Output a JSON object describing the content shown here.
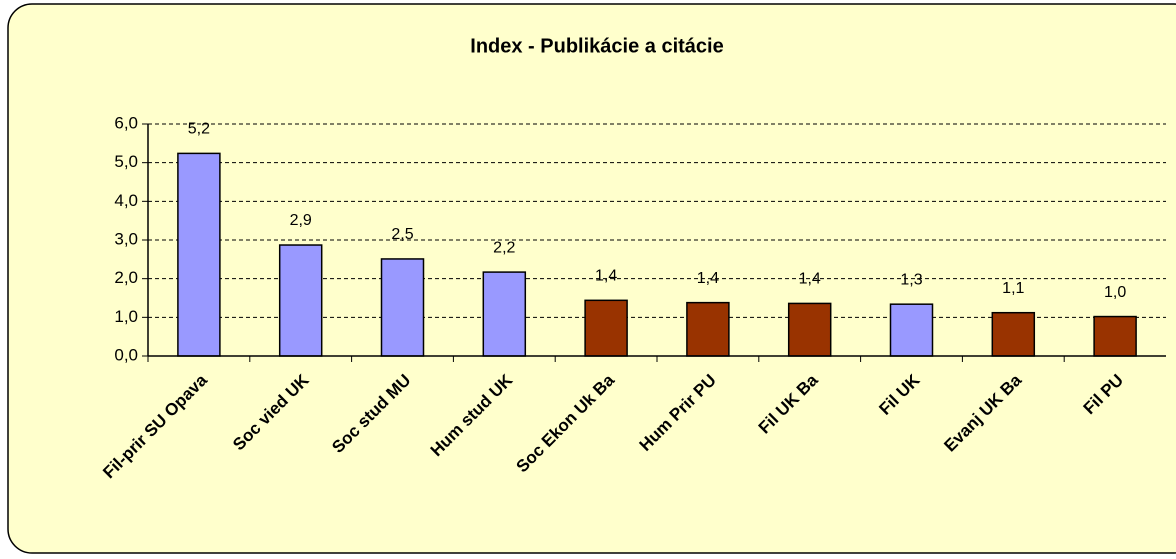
{
  "chart_data": {
    "type": "bar",
    "title": "Index - Publikácie a citácie",
    "categories": [
      "Fil-prir SU Opava",
      "Soc vied UK",
      "Soc stud MU",
      "Hum stud UK",
      "Soc Ekon Uk Ba",
      "Hum Prir PU",
      "Fil UK Ba",
      "Fil UK",
      "Evanj UK Ba",
      "Fil PU"
    ],
    "values": [
      5.24,
      2.87,
      2.51,
      2.17,
      1.44,
      1.38,
      1.36,
      1.34,
      1.12,
      1.02
    ],
    "value_labels": [
      "5,2",
      "2,9",
      "2,5",
      "2,2",
      "1,4",
      "1,4",
      "1,4",
      "1,3",
      "1,1",
      "1,0"
    ],
    "colors": [
      "#9999ff",
      "#9999ff",
      "#9999ff",
      "#9999ff",
      "#993300",
      "#993300",
      "#993300",
      "#9999ff",
      "#993300",
      "#993300"
    ],
    "ylim": [
      0,
      6
    ],
    "yticks": [
      {
        "value": 0,
        "label": "0,0"
      },
      {
        "value": 1,
        "label": "1,0"
      },
      {
        "value": 2,
        "label": "2,0"
      },
      {
        "value": 3,
        "label": "3,0"
      },
      {
        "value": 4,
        "label": "4,0"
      },
      {
        "value": 5,
        "label": "5,0"
      },
      {
        "value": 6,
        "label": "6,0"
      }
    ],
    "grid": true
  }
}
